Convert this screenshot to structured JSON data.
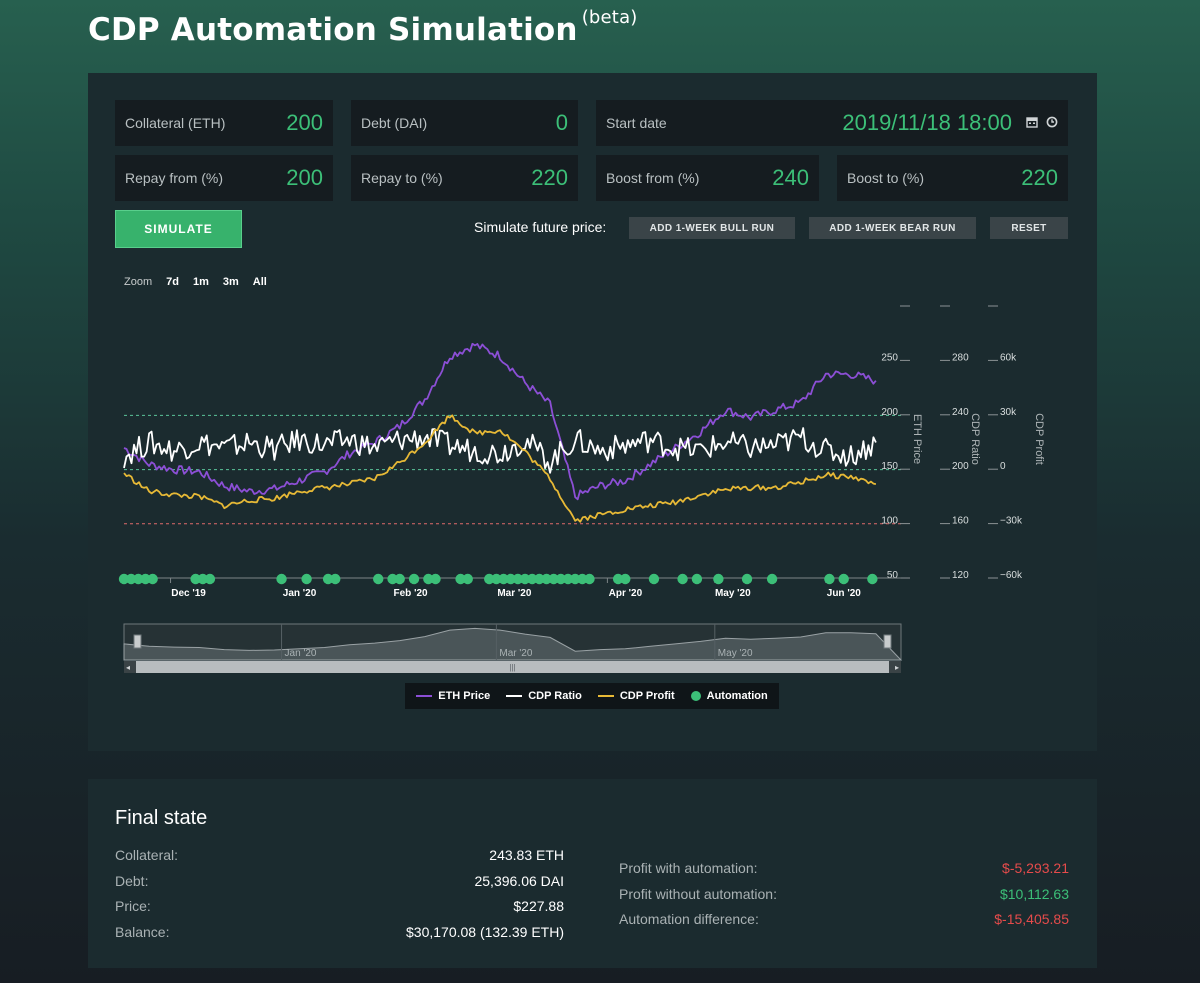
{
  "header": {
    "title": "CDP Automation Simulation",
    "badge": "(beta)"
  },
  "inputs": {
    "collateral": {
      "label": "Collateral (ETH)",
      "value": "200"
    },
    "debt": {
      "label": "Debt (DAI)",
      "value": "0"
    },
    "start_date": {
      "label": "Start date",
      "value": "2019/11/18 18:00",
      "icons": [
        "calendar-icon",
        "clock-icon"
      ]
    },
    "repay_from": {
      "label": "Repay from (%)",
      "value": "200"
    },
    "repay_to": {
      "label": "Repay to (%)",
      "value": "220"
    },
    "boost_from": {
      "label": "Boost from (%)",
      "value": "240"
    },
    "boost_to": {
      "label": "Boost to (%)",
      "value": "220"
    }
  },
  "actions": {
    "simulate_label": "SIMULATE",
    "future_label": "Simulate future price:",
    "bull_label": "ADD 1-WEEK BULL RUN",
    "bear_label": "ADD 1-WEEK BEAR RUN",
    "reset_label": "RESET"
  },
  "zoom": {
    "label": "Zoom",
    "options": [
      "7d",
      "1m",
      "3m",
      "All"
    ]
  },
  "colors": {
    "eth": "#8c4fd6",
    "ratio": "#ffffff",
    "profit": "#e7b936",
    "automation": "#3cbf78",
    "repay_line": "#e06a6a",
    "boost_line": "#5bc49a"
  },
  "chart_data": {
    "type": "line",
    "x_labels": [
      "Dec '19",
      "Jan '20",
      "Feb '20",
      "Mar '20",
      "Apr '20",
      "May '20",
      "Jun '20"
    ],
    "navigator_labels": [
      "Jan '20",
      "Mar '20",
      "May '20"
    ],
    "x": [
      "2019-11-18",
      "2019-11-25",
      "2019-12-02",
      "2019-12-09",
      "2019-12-16",
      "2019-12-23",
      "2019-12-30",
      "2020-01-06",
      "2020-01-13",
      "2020-01-20",
      "2020-01-27",
      "2020-02-03",
      "2020-02-10",
      "2020-02-17",
      "2020-02-24",
      "2020-03-02",
      "2020-03-09",
      "2020-03-16",
      "2020-03-23",
      "2020-03-30",
      "2020-04-06",
      "2020-04-13",
      "2020-04-20",
      "2020-04-27",
      "2020-05-04",
      "2020-05-11",
      "2020-05-18",
      "2020-05-25",
      "2020-06-01",
      "2020-06-08",
      "2020-06-15"
    ],
    "series": [
      {
        "name": "ETH Price",
        "axis": "ETH Price",
        "values": [
          170,
          155,
          150,
          148,
          135,
          130,
          132,
          140,
          148,
          165,
          175,
          190,
          215,
          255,
          265,
          255,
          230,
          210,
          125,
          135,
          140,
          155,
          170,
          185,
          205,
          198,
          205,
          212,
          238,
          238,
          232
        ]
      },
      {
        "name": "CDP Ratio",
        "axis": "CDP Ratio",
        "values": [
          210,
          220,
          214,
          220,
          216,
          220,
          215,
          222,
          218,
          222,
          216,
          222,
          224,
          218,
          214,
          212,
          222,
          206,
          222,
          214,
          218,
          222,
          216,
          214,
          220,
          216,
          218,
          224,
          214,
          210,
          220
        ]
      },
      {
        "name": "CDP Profit",
        "axis": "CDP Profit",
        "values": [
          -2000,
          -12000,
          -14000,
          -15000,
          -20000,
          -17000,
          -16000,
          -12000,
          -10000,
          -8000,
          -5000,
          4000,
          15000,
          30000,
          20000,
          22000,
          10000,
          -5000,
          -28000,
          -25000,
          -22000,
          -20000,
          -18000,
          -14000,
          -11000,
          -10000,
          -10000,
          -7000,
          -3000,
          -4000,
          -8000
        ]
      }
    ],
    "automation_events": [
      "2019-11-18",
      "2019-11-20",
      "2019-11-22",
      "2019-11-24",
      "2019-11-26",
      "2019-12-08",
      "2019-12-10",
      "2019-12-12",
      "2020-01-01",
      "2020-01-08",
      "2020-01-14",
      "2020-01-16",
      "2020-01-28",
      "2020-02-01",
      "2020-02-03",
      "2020-02-07",
      "2020-02-11",
      "2020-02-13",
      "2020-02-20",
      "2020-02-22",
      "2020-02-28",
      "2020-03-01",
      "2020-03-03",
      "2020-03-05",
      "2020-03-07",
      "2020-03-09",
      "2020-03-11",
      "2020-03-13",
      "2020-03-15",
      "2020-03-17",
      "2020-03-19",
      "2020-03-21",
      "2020-03-23",
      "2020-03-25",
      "2020-03-27",
      "2020-04-04",
      "2020-04-06",
      "2020-04-14",
      "2020-04-22",
      "2020-04-26",
      "2020-05-02",
      "2020-05-10",
      "2020-05-17",
      "2020-06-02",
      "2020-06-06",
      "2020-06-14"
    ],
    "axes": [
      {
        "title": "ETH Price",
        "ticks": [
          "50",
          "100",
          "150",
          "200",
          "250"
        ],
        "range": [
          50,
          300
        ]
      },
      {
        "title": "CDP Ratio",
        "ticks": [
          "120",
          "160",
          "200",
          "240",
          "280"
        ],
        "range": [
          120,
          320
        ]
      },
      {
        "title": "CDP Profit",
        "ticks": [
          "−60k",
          "−30k",
          "0",
          "30k",
          "60k"
        ],
        "range": [
          -60000,
          90000
        ]
      }
    ],
    "ratio_thresholds": {
      "repay_from": 200,
      "boost_from": 240,
      "repay_line_ratio": 160
    },
    "legend": {
      "placement": "bottom-center",
      "items": [
        "ETH Price",
        "CDP Ratio",
        "CDP Profit",
        "Automation"
      ]
    }
  },
  "final_state": {
    "title": "Final state",
    "left": [
      {
        "label": "Collateral:",
        "value": "243.83 ETH"
      },
      {
        "label": "Debt:",
        "value": "25,396.06 DAI"
      },
      {
        "label": "Price:",
        "value": "$227.88"
      },
      {
        "label": "Balance:",
        "value": "$30,170.08 (132.39 ETH)"
      }
    ],
    "right": [
      {
        "label": "Profit with automation:",
        "value": "$-5,293.21",
        "tone": "negative"
      },
      {
        "label": "Profit without automation:",
        "value": "$10,112.63",
        "tone": "positive"
      },
      {
        "label": "Automation difference:",
        "value": "$-15,405.85",
        "tone": "negative"
      }
    ]
  }
}
